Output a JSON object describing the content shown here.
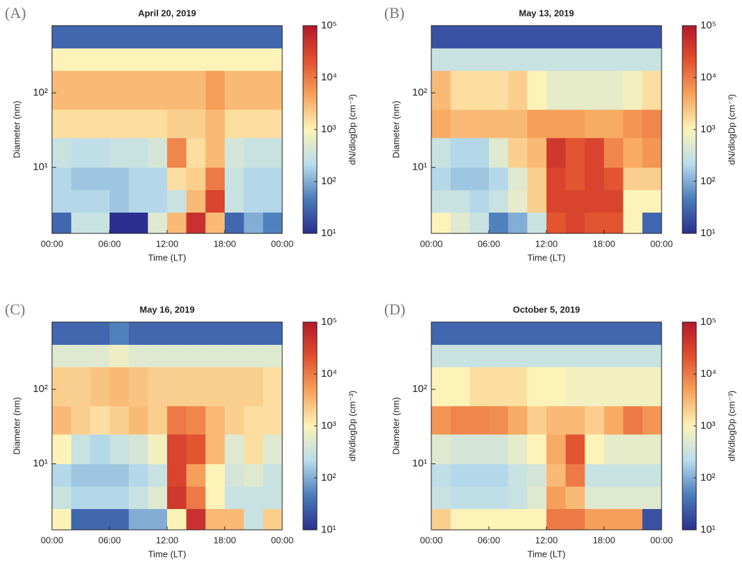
{
  "chart_data": [
    {
      "type": "heatmap",
      "panel_label": "(A)",
      "title": "April 20, 2019",
      "x_label": "Time (LT)",
      "y_label": "Diameter (nm)",
      "colorbar_label": "dN/dlogDp (cm⁻³)",
      "x_bins": [
        0,
        2,
        4,
        6,
        8,
        10,
        12,
        14,
        16,
        18,
        20,
        22,
        24
      ],
      "y_bins": [
        1.3,
        2.5,
        5,
        10,
        25,
        60,
        200,
        400,
        800
      ],
      "z": [
        [
          30,
          300,
          300,
          10,
          10,
          500,
          3000,
          50000,
          3000,
          30,
          100,
          50
        ],
        [
          200,
          200,
          200,
          150,
          200,
          200,
          300,
          3000,
          30000,
          300,
          200,
          200
        ],
        [
          200,
          150,
          150,
          150,
          200,
          200,
          1500,
          2000,
          10000,
          300,
          200,
          200
        ],
        [
          300,
          250,
          250,
          300,
          300,
          400,
          8000,
          1500,
          3000,
          400,
          300,
          300
        ],
        [
          1500,
          1500,
          1500,
          1500,
          1500,
          1500,
          2000,
          2000,
          3000,
          1500,
          1500,
          1500
        ],
        [
          3000,
          3000,
          3000,
          3000,
          3000,
          3000,
          3000,
          3000,
          5000,
          3000,
          3000,
          3000
        ],
        [
          1000,
          1000,
          1000,
          1000,
          1000,
          1000,
          1000,
          1000,
          1000,
          1000,
          1000,
          1000
        ],
        [
          30,
          30,
          30,
          30,
          30,
          30,
          30,
          30,
          30,
          30,
          30,
          30
        ]
      ],
      "xlim": [
        0,
        24
      ],
      "xticks": [
        {
          "value": 0,
          "label": "00:00"
        },
        {
          "value": 6,
          "label": "06:00"
        },
        {
          "value": 12,
          "label": "12:00"
        },
        {
          "value": 18,
          "label": "18:00"
        },
        {
          "value": 24,
          "label": "00:00"
        }
      ],
      "ylim": [
        1.3,
        800
      ],
      "y_log": true,
      "yticks": [
        {
          "value": 10,
          "label": "10¹"
        },
        {
          "value": 100,
          "label": "10²"
        }
      ],
      "zlim": [
        10,
        100000
      ],
      "z_log": true,
      "zticks": [
        {
          "value": 10,
          "label": "10¹"
        },
        {
          "value": 100,
          "label": "10²"
        },
        {
          "value": 1000,
          "label": "10³"
        },
        {
          "value": 10000,
          "label": "10⁴"
        },
        {
          "value": 100000,
          "label": "10⁵"
        }
      ],
      "colormap": [
        "#2b2f8f",
        "#4a7dbb",
        "#b9dcec",
        "#fdf3b8",
        "#f7a35c",
        "#e2502f",
        "#b2182b"
      ]
    },
    {
      "type": "heatmap",
      "panel_label": "(B)",
      "title": "May 13, 2019",
      "x_label": "Time (LT)",
      "y_label": "Diameter (nm)",
      "colorbar_label": "dN/dlogDp (cm⁻³)",
      "x_bins": [
        0,
        2,
        4,
        6,
        8,
        10,
        12,
        14,
        16,
        18,
        20,
        22,
        24
      ],
      "y_bins": [
        1.3,
        2.5,
        5,
        10,
        25,
        60,
        200,
        400,
        800
      ],
      "z": [
        [
          1000,
          500,
          300,
          50,
          100,
          300,
          20000,
          30000,
          20000,
          20000,
          1000,
          30
        ],
        [
          300,
          300,
          200,
          300,
          600,
          2000,
          30000,
          30000,
          30000,
          30000,
          1000,
          1000
        ],
        [
          200,
          150,
          150,
          200,
          500,
          2000,
          30000,
          20000,
          30000,
          20000,
          2000,
          2000
        ],
        [
          300,
          200,
          200,
          500,
          2000,
          3000,
          40000,
          20000,
          30000,
          8000,
          4000,
          6000
        ],
        [
          4000,
          3000,
          3000,
          3000,
          3000,
          5000,
          5000,
          5000,
          4000,
          4000,
          6000,
          8000
        ],
        [
          3000,
          1500,
          1500,
          1500,
          2000,
          1000,
          600,
          600,
          600,
          600,
          800,
          1500
        ],
        [
          300,
          300,
          300,
          300,
          300,
          300,
          300,
          300,
          300,
          300,
          300,
          300
        ],
        [
          20,
          20,
          20,
          20,
          20,
          20,
          20,
          20,
          20,
          20,
          20,
          20
        ]
      ],
      "xlim": [
        0,
        24
      ],
      "xticks": [
        {
          "value": 0,
          "label": "00:00"
        },
        {
          "value": 6,
          "label": "06:00"
        },
        {
          "value": 12,
          "label": "12:00"
        },
        {
          "value": 18,
          "label": "18:00"
        },
        {
          "value": 24,
          "label": "00:00"
        }
      ],
      "ylim": [
        1.3,
        800
      ],
      "y_log": true,
      "yticks": [
        {
          "value": 10,
          "label": "10¹"
        },
        {
          "value": 100,
          "label": "10²"
        }
      ],
      "zlim": [
        10,
        100000
      ],
      "z_log": true,
      "zticks": [
        {
          "value": 10,
          "label": "10¹"
        },
        {
          "value": 100,
          "label": "10²"
        },
        {
          "value": 1000,
          "label": "10³"
        },
        {
          "value": 10000,
          "label": "10⁴"
        },
        {
          "value": 100000,
          "label": "10⁵"
        }
      ],
      "colormap": [
        "#2b2f8f",
        "#4a7dbb",
        "#b9dcec",
        "#fdf3b8",
        "#f7a35c",
        "#e2502f",
        "#b2182b"
      ]
    },
    {
      "type": "heatmap",
      "panel_label": "(C)",
      "title": "May 16, 2019",
      "x_label": "Time (LT)",
      "y_label": "Diameter (nm)",
      "colorbar_label": "dN/dlogDp (cm⁻³)",
      "x_bins": [
        0,
        2,
        4,
        6,
        8,
        10,
        12,
        14,
        16,
        18,
        20,
        22,
        24
      ],
      "y_bins": [
        1.3,
        2.5,
        5,
        10,
        25,
        60,
        200,
        400,
        800
      ],
      "z": [
        [
          1000,
          30,
          30,
          30,
          100,
          100,
          1000,
          50000,
          3000,
          3000,
          300,
          2000
        ],
        [
          300,
          200,
          200,
          200,
          300,
          500,
          40000,
          10000,
          1000,
          300,
          300,
          300
        ],
        [
          200,
          150,
          150,
          150,
          200,
          300,
          30000,
          5000,
          1000,
          400,
          500,
          300
        ],
        [
          1000,
          300,
          200,
          300,
          400,
          800,
          30000,
          20000,
          3000,
          500,
          1500,
          500
        ],
        [
          3000,
          2000,
          1500,
          2000,
          3000,
          2000,
          10000,
          8000,
          3000,
          2000,
          1500,
          1500
        ],
        [
          2000,
          2000,
          2500,
          3000,
          2500,
          2000,
          2000,
          2000,
          2000,
          2000,
          2000,
          1500
        ],
        [
          500,
          500,
          500,
          700,
          500,
          500,
          500,
          500,
          500,
          500,
          500,
          500
        ],
        [
          30,
          30,
          30,
          50,
          30,
          30,
          30,
          30,
          30,
          30,
          30,
          30
        ]
      ],
      "xlim": [
        0,
        24
      ],
      "xticks": [
        {
          "value": 0,
          "label": "00:00"
        },
        {
          "value": 6,
          "label": "06:00"
        },
        {
          "value": 12,
          "label": "12:00"
        },
        {
          "value": 18,
          "label": "18:00"
        },
        {
          "value": 24,
          "label": "00:00"
        }
      ],
      "ylim": [
        1.3,
        800
      ],
      "y_log": true,
      "yticks": [
        {
          "value": 10,
          "label": "10¹"
        },
        {
          "value": 100,
          "label": "10²"
        }
      ],
      "zlim": [
        10,
        100000
      ],
      "z_log": true,
      "zticks": [
        {
          "value": 10,
          "label": "10¹"
        },
        {
          "value": 100,
          "label": "10²"
        },
        {
          "value": 1000,
          "label": "10³"
        },
        {
          "value": 10000,
          "label": "10⁴"
        },
        {
          "value": 100000,
          "label": "10⁵"
        }
      ],
      "colormap": [
        "#2b2f8f",
        "#4a7dbb",
        "#b9dcec",
        "#fdf3b8",
        "#f7a35c",
        "#e2502f",
        "#b2182b"
      ]
    },
    {
      "type": "heatmap",
      "panel_label": "(D)",
      "title": "October 5, 2019",
      "x_label": "Time (LT)",
      "y_label": "Diameter (nm)",
      "colorbar_label": "dN/dlogDp (cm⁻³)",
      "x_bins": [
        0,
        2,
        4,
        6,
        8,
        10,
        12,
        14,
        16,
        18,
        20,
        22,
        24
      ],
      "y_bins": [
        1.3,
        2.5,
        5,
        10,
        25,
        60,
        200,
        400,
        800
      ],
      "z": [
        [
          2000,
          1000,
          1000,
          1000,
          1000,
          1000,
          10000,
          10000,
          5000,
          5000,
          5000,
          20
        ],
        [
          300,
          250,
          250,
          250,
          300,
          500,
          5000,
          3000,
          500,
          500,
          500,
          500
        ],
        [
          250,
          200,
          200,
          200,
          300,
          400,
          3000,
          10000,
          300,
          300,
          300,
          300
        ],
        [
          500,
          400,
          400,
          400,
          600,
          1000,
          4000,
          20000,
          1000,
          600,
          600,
          600
        ],
        [
          6000,
          8000,
          8000,
          7000,
          4000,
          2000,
          3000,
          3000,
          2000,
          4000,
          10000,
          6000
        ],
        [
          1000,
          1000,
          1500,
          1500,
          1500,
          1000,
          1000,
          800,
          800,
          800,
          800,
          800
        ],
        [
          300,
          300,
          300,
          300,
          300,
          300,
          300,
          300,
          300,
          300,
          300,
          300
        ],
        [
          30,
          30,
          30,
          30,
          30,
          30,
          30,
          30,
          30,
          30,
          30,
          30
        ]
      ],
      "xlim": [
        0,
        24
      ],
      "xticks": [
        {
          "value": 0,
          "label": "00:00"
        },
        {
          "value": 6,
          "label": "06:00"
        },
        {
          "value": 12,
          "label": "12:00"
        },
        {
          "value": 18,
          "label": "18:00"
        },
        {
          "value": 24,
          "label": "00:00"
        }
      ],
      "ylim": [
        1.3,
        800
      ],
      "y_log": true,
      "yticks": [
        {
          "value": 10,
          "label": "10¹"
        },
        {
          "value": 100,
          "label": "10²"
        }
      ],
      "zlim": [
        10,
        100000
      ],
      "z_log": true,
      "zticks": [
        {
          "value": 10,
          "label": "10¹"
        },
        {
          "value": 100,
          "label": "10²"
        },
        {
          "value": 1000,
          "label": "10³"
        },
        {
          "value": 10000,
          "label": "10⁴"
        },
        {
          "value": 100000,
          "label": "10⁵"
        }
      ],
      "colormap": [
        "#2b2f8f",
        "#4a7dbb",
        "#b9dcec",
        "#fdf3b8",
        "#f7a35c",
        "#e2502f",
        "#b2182b"
      ]
    }
  ]
}
